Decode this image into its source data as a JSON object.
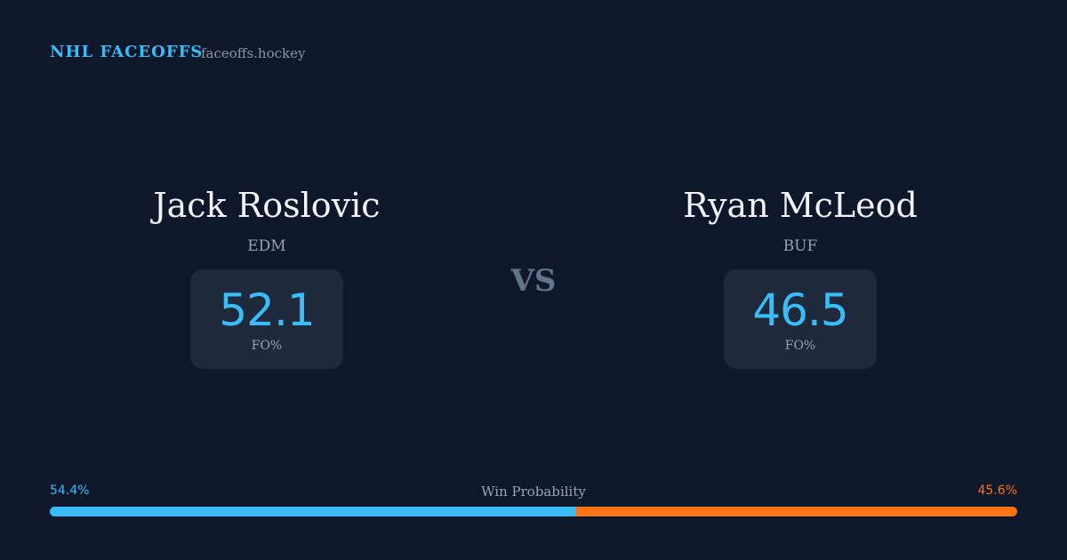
{
  "header": {
    "brand": "NHL FACEOFFS",
    "site": "faceoffs.hockey"
  },
  "players": [
    {
      "name": "Jack Roslovic",
      "team": "EDM",
      "stat": 52.1,
      "stat_label": "FO%"
    },
    {
      "name": "Ryan McLeod",
      "team": "BUF",
      "stat": 46.5,
      "stat_label": "FO%"
    }
  ],
  "versus": "VS",
  "win_probability": {
    "label": "Win Probability",
    "left": {
      "value": 54.4,
      "label": "54.4%"
    },
    "right": {
      "value": 45.6,
      "label": "45.6%"
    },
    "left_color": "#38bdf8",
    "right_color": "#f97316"
  }
}
